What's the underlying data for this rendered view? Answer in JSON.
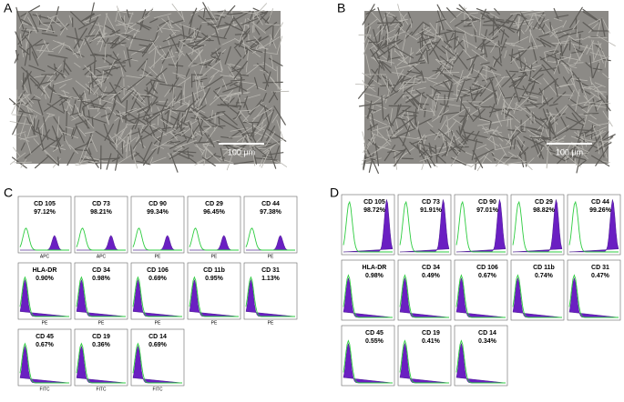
{
  "micrographs": [
    {
      "label": "A",
      "scale_bar": "100 μm"
    },
    {
      "label": "B",
      "scale_bar": "100 μm"
    }
  ],
  "flow_c": {
    "label": "C",
    "plots": [
      {
        "marker": "CD 105",
        "percent": "97.12%",
        "axis": "APC"
      },
      {
        "marker": "CD 73",
        "percent": "98.21%",
        "axis": "APC"
      },
      {
        "marker": "CD 90",
        "percent": "99.34%",
        "axis": "PE"
      },
      {
        "marker": "CD 29",
        "percent": "96.45%",
        "axis": "PE"
      },
      {
        "marker": "CD 44",
        "percent": "97.38%",
        "axis": "PE"
      },
      {
        "marker": "HLA-DR",
        "percent": "0.90%",
        "axis": "PE"
      },
      {
        "marker": "CD 34",
        "percent": "0.98%",
        "axis": "PE"
      },
      {
        "marker": "CD 106",
        "percent": "0.69%",
        "axis": "PE"
      },
      {
        "marker": "CD 11b",
        "percent": "0.95%",
        "axis": "PE"
      },
      {
        "marker": "CD 31",
        "percent": "1.13%",
        "axis": "PE"
      },
      {
        "marker": "CD 45",
        "percent": "0.67%",
        "axis": "FITC"
      },
      {
        "marker": "CD 19",
        "percent": "0.36%",
        "axis": "FITC"
      },
      {
        "marker": "CD 14",
        "percent": "0.69%",
        "axis": "FITC"
      }
    ]
  },
  "flow_d": {
    "label": "D",
    "plots": [
      {
        "marker": "CD 105",
        "percent": "98.72%"
      },
      {
        "marker": "CD 73",
        "percent": "91.91%"
      },
      {
        "marker": "CD 90",
        "percent": "97.01%"
      },
      {
        "marker": "CD 29",
        "percent": "98.82%"
      },
      {
        "marker": "CD 44",
        "percent": "99.26%"
      },
      {
        "marker": "HLA-DR",
        "percent": "0.98%"
      },
      {
        "marker": "CD 34",
        "percent": "0.49%"
      },
      {
        "marker": "CD 106",
        "percent": "0.67%"
      },
      {
        "marker": "CD 11b",
        "percent": "0.74%"
      },
      {
        "marker": "CD 31",
        "percent": "0.47%"
      },
      {
        "marker": "CD 45",
        "percent": "0.55%"
      },
      {
        "marker": "CD 19",
        "percent": "0.41%"
      },
      {
        "marker": "CD 14",
        "percent": "0.34%"
      }
    ]
  }
}
